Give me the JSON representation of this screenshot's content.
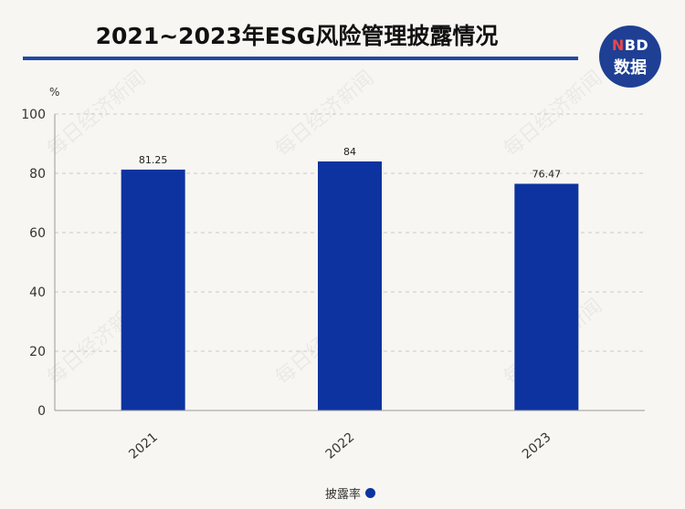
{
  "title": "2021~2023年ESG风险管理披露情况",
  "logo": {
    "line1_n": "N",
    "line1_rest": "BD",
    "line2": "数据"
  },
  "watermark": "每日经济新闻",
  "colors": {
    "bar": "#0d33a0",
    "accent": "#2049a4",
    "logo_bg": "#1e3f93"
  },
  "chart_data": {
    "type": "bar",
    "categories": [
      "2021",
      "2022",
      "2023"
    ],
    "series": [
      {
        "name": "披露率",
        "values": [
          81.25,
          84,
          76.47
        ]
      }
    ],
    "data_labels": [
      "81.25",
      "84",
      "76.47"
    ],
    "ylabel": "%",
    "ylim": [
      0,
      100
    ],
    "yticks": [
      0,
      20,
      40,
      60,
      80,
      100
    ],
    "grid": true,
    "legend": "bottom-center"
  }
}
